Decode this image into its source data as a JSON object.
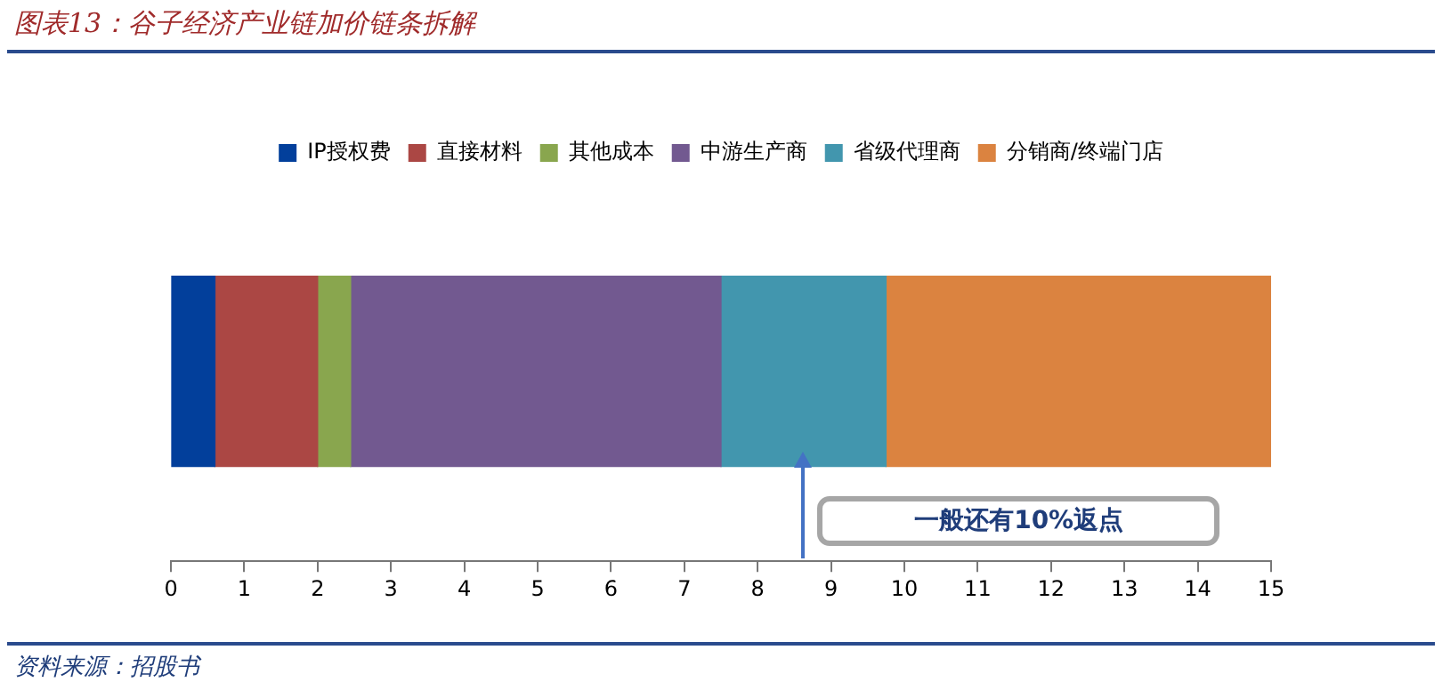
{
  "chart_data": {
    "type": "bar",
    "orientation": "horizontal",
    "stacked": true,
    "title": "图表13：谷子经济产业链加价链条拆解",
    "categories": [
      null
    ],
    "series": [
      {
        "name": "IP授权费",
        "color": "#023f9b",
        "values": [
          0.6
        ]
      },
      {
        "name": "直接材料",
        "color": "#ab4744",
        "values": [
          1.4
        ]
      },
      {
        "name": "其他成本",
        "color": "#89a64e",
        "values": [
          0.45
        ]
      },
      {
        "name": "中游生产商",
        "color": "#725990",
        "values": [
          5.05
        ]
      },
      {
        "name": "省级代理商",
        "color": "#4296ae",
        "values": [
          2.25
        ]
      },
      {
        "name": "分销商/终端门店",
        "color": "#db8340",
        "values": [
          5.25
        ]
      }
    ],
    "xlim": [
      0,
      15
    ],
    "xticks": [
      0,
      1,
      2,
      3,
      4,
      5,
      6,
      7,
      8,
      9,
      10,
      11,
      12,
      13,
      14,
      15
    ],
    "grid": false,
    "legend": "top",
    "annotations": [
      "一般还有10%返点",
      "资料来源：招股书"
    ]
  }
}
